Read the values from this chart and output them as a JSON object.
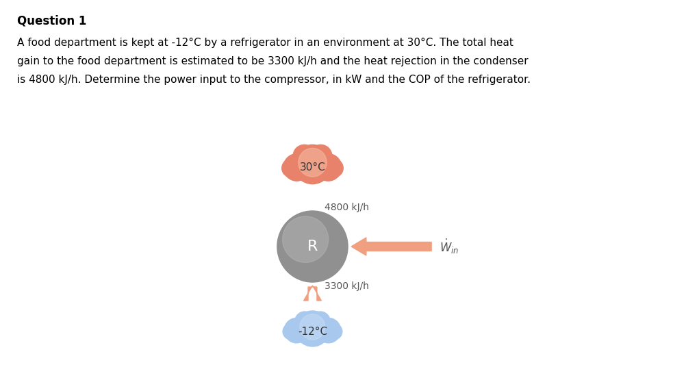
{
  "title": "Question 1",
  "question_line1": "A food department is kept at -12°C by a refrigerator in an environment at 30°C. The total heat",
  "question_line2": "gain to the food department is estimated to be 3300 kJ/h and the heat rejection in the condenser",
  "question_line3": "is 4800 kJ/h. Determine the power input to the compressor, in kW and the COP of the refrigerator.",
  "hot_temp": "30°C",
  "cold_temp": "-12°C",
  "q_hot": "4800 kJ/h",
  "q_cold": "3300 kJ/h",
  "refrigerator_label": "R",
  "hot_cloud_color": "#E8826A",
  "hot_cloud_light": "#F5B8A0",
  "cold_cloud_color": "#7AACE8",
  "cold_cloud_light": "#C0D8F5",
  "cold_cloud_mid": "#A8C8EE",
  "arrow_color": "#F0A080",
  "refrigerator_color": "#909090",
  "refrigerator_light": "#B8B8B8",
  "bg_color": "#FFFFFF",
  "text_color": "#333333",
  "label_color": "#555555"
}
